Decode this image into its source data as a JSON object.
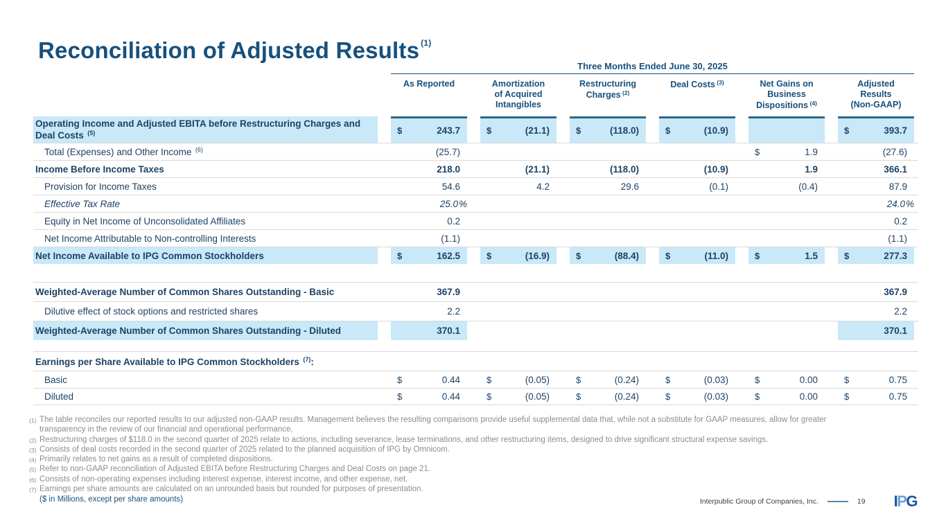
{
  "slide": {
    "title": "Reconciliation of Adjusted Results",
    "title_sup": "(1)",
    "units_note": "($ in Millions, except per share amounts)",
    "footer": {
      "company": "Interpublic Group of Companies, Inc.",
      "page": "19",
      "logo_letters": {
        "l1": "I",
        "l2": "P",
        "l3": "G"
      }
    }
  },
  "table": {
    "period": "Three Months Ended June 30, 2025",
    "columns": [
      {
        "lines": [
          "As Reported"
        ],
        "sup": ""
      },
      {
        "lines": [
          "Amortization",
          "of Acquired",
          "Intangibles"
        ],
        "sup": ""
      },
      {
        "lines": [
          "Restructuring",
          "Charges"
        ],
        "sup": "(2)"
      },
      {
        "lines": [
          "Deal Costs"
        ],
        "sup": "(3)"
      },
      {
        "lines": [
          "Net Gains on",
          "Business",
          "Dispositions"
        ],
        "sup": "(4)"
      },
      {
        "lines": [
          "Adjusted",
          "Results",
          "(Non-GAAP)"
        ],
        "sup": ""
      }
    ],
    "rows": [
      {
        "label": "Operating Income and Adjusted EBITA before Restructuring Charges and Deal Costs",
        "sup": "(5)",
        "bold": true,
        "hl_label": true,
        "tall": true,
        "cells": [
          {
            "d": "$",
            "v": "243.7",
            "hl": true,
            "bar": true
          },
          {
            "d": "$",
            "v": "(21.1)",
            "hl": true,
            "bar": true
          },
          {
            "d": "$",
            "v": "(118.0)",
            "hl": true,
            "bar": true
          },
          {
            "d": "$",
            "v": "(10.9)",
            "hl": true,
            "bar": true
          },
          {
            "v": "",
            "hl": true,
            "bar": true
          },
          {
            "d": "$",
            "v": "393.7",
            "hl": true,
            "bar": true
          }
        ]
      },
      {
        "label": "Total (Expenses) and Other Income",
        "sup": "(6)",
        "indent": true,
        "bt": true,
        "cells": [
          {
            "v": "(25.7)"
          },
          {},
          {},
          {},
          {
            "d": "$",
            "v": "1.9"
          },
          {
            "v": "(27.6)"
          }
        ]
      },
      {
        "label": "Income Before Income Taxes",
        "bold": true,
        "bt": true,
        "cells": [
          {
            "v": "218.0"
          },
          {
            "v": "(21.1)"
          },
          {
            "v": "(118.0)"
          },
          {
            "v": "(10.9)"
          },
          {
            "v": "1.9"
          },
          {
            "v": "366.1"
          }
        ]
      },
      {
        "label": "Provision for Income Taxes",
        "indent": true,
        "bt": true,
        "cells": [
          {
            "v": "54.6"
          },
          {
            "v": "4.2"
          },
          {
            "v": "29.6"
          },
          {
            "v": "(0.1)"
          },
          {
            "v": "(0.4)"
          },
          {
            "v": "87.9"
          }
        ]
      },
      {
        "label": "Effective Tax Rate",
        "indent": true,
        "italic": true,
        "bt": true,
        "cells": [
          {
            "v": "25.0",
            "pct": true
          },
          {},
          {},
          {},
          {},
          {
            "v": "24.0",
            "pct": true
          }
        ]
      },
      {
        "label": "Equity in Net Income of Unconsolidated Affiliates",
        "indent": true,
        "bt": true,
        "cells": [
          {
            "v": "0.2"
          },
          {},
          {},
          {},
          {},
          {
            "v": "0.2"
          }
        ]
      },
      {
        "label": "Net Income Attributable to Non-controlling Interests",
        "indent": true,
        "bt": true,
        "cells": [
          {
            "v": "(1.1)"
          },
          {},
          {},
          {},
          {},
          {
            "v": "(1.1)"
          }
        ]
      },
      {
        "label": "Net Income Available to IPG Common Stockholders",
        "bold": true,
        "hl_label": true,
        "bt": true,
        "cells": [
          {
            "d": "$",
            "v": "162.5",
            "hl": true
          },
          {
            "d": "$",
            "v": "(16.9)",
            "hl": true
          },
          {
            "d": "$",
            "v": "(88.4)",
            "hl": true
          },
          {
            "d": "$",
            "v": "(11.0)",
            "hl": true
          },
          {
            "d": "$",
            "v": "1.5",
            "hl": true
          },
          {
            "d": "$",
            "v": "277.3",
            "hl": true
          }
        ]
      },
      {
        "label": "Weighted-Average Number of Common Shares Outstanding - Basic",
        "bold": true,
        "bt": true,
        "gap": "lg",
        "roomy": true,
        "cells": [
          {
            "v": "367.9"
          },
          {},
          {},
          {},
          {},
          {
            "v": "367.9"
          }
        ]
      },
      {
        "label": "Dilutive effect of stock options and restricted shares",
        "indent": true,
        "bt": true,
        "roomy": true,
        "cells": [
          {
            "v": "2.2"
          },
          {},
          {},
          {},
          {},
          {
            "v": "2.2"
          }
        ]
      },
      {
        "label": "Weighted-Average Number of Common Shares Outstanding - Diluted",
        "bold": true,
        "hl_label": true,
        "bt": true,
        "roomy": true,
        "cells": [
          {
            "v": "370.1",
            "hl": true
          },
          {},
          {},
          {},
          {},
          {
            "v": "370.1",
            "hl": true
          }
        ]
      },
      {
        "label": "Earnings per Share Available to IPG Common Stockholders",
        "sup": "(7)",
        "suffix": ":",
        "bold": true,
        "bt": true,
        "gap": "sm",
        "roomy": true,
        "cells": [
          {},
          {},
          {},
          {},
          {},
          {}
        ]
      },
      {
        "label": "Basic",
        "indent": true,
        "bt": true,
        "cells": [
          {
            "d": "$",
            "v": "0.44"
          },
          {
            "d": "$",
            "v": "(0.05)"
          },
          {
            "d": "$",
            "v": "(0.24)"
          },
          {
            "d": "$",
            "v": "(0.03)"
          },
          {
            "d": "$",
            "v": "0.00"
          },
          {
            "d": "$",
            "v": "0.75"
          }
        ]
      },
      {
        "label": "Diluted",
        "indent": true,
        "bt": true,
        "bb": true,
        "cells": [
          {
            "d": "$",
            "v": "0.44"
          },
          {
            "d": "$",
            "v": "(0.05)"
          },
          {
            "d": "$",
            "v": "(0.24)"
          },
          {
            "d": "$",
            "v": "(0.03)"
          },
          {
            "d": "$",
            "v": "0.00"
          },
          {
            "d": "$",
            "v": "0.75"
          }
        ]
      }
    ]
  },
  "footnotes": [
    {
      "sup": "(1)",
      "text": "The table reconciles our reported results to our adjusted non-GAAP results. Management believes the resulting comparisons provide useful supplemental data that, while not a substitute for GAAP measures, allow for greater transparency in the review of our financial and operational performance."
    },
    {
      "sup": "(2)",
      "text": "Restructuring charges of $118.0 in the second quarter of 2025 relate to actions, including severance, lease terminations, and other restructuring items, designed to drive significant structural expense savings."
    },
    {
      "sup": "(3)",
      "text": "Consists of deal costs recorded in the second quarter of 2025 related to the planned acquisition of IPG by Omnicom."
    },
    {
      "sup": "(4)",
      "text": "Primarily relates to net gains as a result of completed dispositions."
    },
    {
      "sup": "(5)",
      "text": "Refer to non-GAAP reconciliation of Adjusted EBITA before Restructuring Charges and Deal Costs on page 21."
    },
    {
      "sup": "(6)",
      "text": "Consists of non-operating expenses including interest expense, interest income, and other expense, net."
    },
    {
      "sup": "(7)",
      "text": "Earnings per share amounts are calculated on an unrounded basis but rounded for purposes of presentation."
    }
  ]
}
